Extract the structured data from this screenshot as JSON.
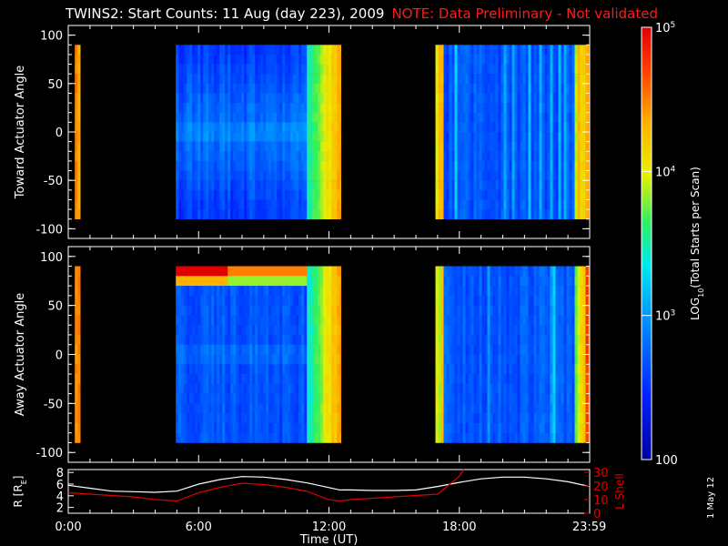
{
  "title": {
    "main": "TWINS2: Start Counts: 11 Aug (day 223), 2009",
    "note": "NOTE: Data Preliminary - Not validated"
  },
  "datestamp": "1 May 12",
  "colors": {
    "background": "#000000",
    "axis": "#ffffff",
    "note": "#ff1a1a",
    "r_line": "#ffffff",
    "l_shell_line": "#e00000"
  },
  "chart_data": [
    {
      "type": "heatmap",
      "ylabel": "Toward Actuator Angle",
      "ylim": [
        -110,
        110
      ],
      "yticks": [
        100,
        50,
        0,
        -50,
        -100
      ],
      "xlim_hours": [
        0,
        24
      ],
      "data_range_deg": [
        -90,
        90
      ],
      "data_segments_hours": [
        [
          0.3,
          0.55
        ],
        [
          4.95,
          12.55
        ],
        [
          16.9,
          24
        ]
      ],
      "typical_level_log10": [
        2.6,
        3.2
      ]
    },
    {
      "type": "heatmap",
      "ylabel": "Away Actuator Angle",
      "ylim": [
        -110,
        110
      ],
      "yticks": [
        100,
        50,
        0,
        -50,
        -100
      ],
      "xlim_hours": [
        0,
        24
      ],
      "data_range_deg": [
        -90,
        90
      ],
      "data_segments_hours": [
        [
          0.3,
          0.55
        ],
        [
          4.95,
          12.55
        ],
        [
          16.9,
          24
        ]
      ],
      "typical_level_log10": [
        2.6,
        3.2
      ]
    },
    {
      "type": "line",
      "xlabel": "Time (UT)",
      "xticks": [
        "0:00",
        "6:00",
        "12:00",
        "18:00",
        "23:59"
      ],
      "xtick_hours": [
        0,
        6,
        12,
        18,
        23.983
      ],
      "ylabel_left": "R [R",
      "ylabel_left_sub": "E",
      "ylabel_left_end": "]",
      "yticks_left": [
        "2",
        "4",
        "6",
        "8"
      ],
      "ylim_left": [
        1,
        8.5
      ],
      "ylabel_right": "L Shell",
      "yticks_right": [
        "0",
        "10",
        "20",
        "30"
      ],
      "ylim_right": [
        0,
        32
      ],
      "series": [
        {
          "axis": "left",
          "x": [
            0,
            1,
            2,
            3,
            4,
            5,
            6,
            7,
            8,
            9,
            10,
            11,
            12,
            12.5,
            13,
            14,
            15,
            16,
            17,
            18,
            19,
            20,
            21,
            22,
            23,
            24
          ],
          "values": [
            5.8,
            5.3,
            4.8,
            4.7,
            4.6,
            4.8,
            6.0,
            6.8,
            7.3,
            7.2,
            6.8,
            6.2,
            5.4,
            5.0,
            5.0,
            4.9,
            4.9,
            5.0,
            5.6,
            6.3,
            6.9,
            7.2,
            7.2,
            6.9,
            6.4,
            5.6
          ]
        },
        {
          "axis": "right",
          "x": [
            0,
            1,
            2,
            3,
            4,
            5,
            6,
            7,
            8,
            9,
            10,
            11,
            12,
            12.5,
            13,
            14,
            15,
            16,
            17,
            18,
            18.2
          ],
          "values": [
            15,
            14,
            13,
            12,
            10,
            9,
            15,
            19,
            22,
            21,
            19,
            16,
            10,
            9,
            10,
            11,
            12,
            13,
            14,
            27,
            32
          ]
        }
      ]
    }
  ],
  "colorbar": {
    "label": "LOG",
    "label_sub": "10",
    "label_rest": "(Total Starts per Scan)",
    "ticks": [
      {
        "base": "10",
        "exp": "5",
        "log": 5
      },
      {
        "base": "10",
        "exp": "4",
        "log": 4
      },
      {
        "base": "10",
        "exp": "3",
        "log": 3
      },
      {
        "base": "100",
        "exp": "",
        "log": 2
      }
    ],
    "range_log": [
      2,
      5
    ]
  }
}
